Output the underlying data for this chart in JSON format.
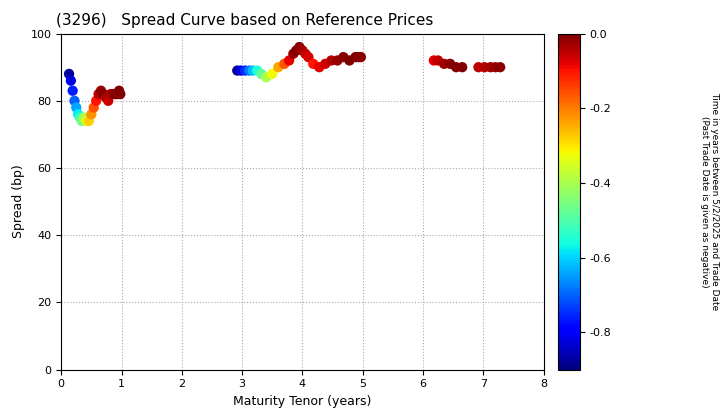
{
  "title": "(3296)   Spread Curve based on Reference Prices",
  "xlabel": "Maturity Tenor (years)",
  "ylabel": "Spread (bp)",
  "colorbar_label": "Time in years between 5/2/2025 and Trade Date\n(Past Trade Date is given as negative)",
  "xlim": [
    0,
    8
  ],
  "ylim": [
    0,
    100
  ],
  "xticks": [
    0,
    1,
    2,
    3,
    4,
    5,
    6,
    7,
    8
  ],
  "yticks": [
    0,
    20,
    40,
    60,
    80,
    100
  ],
  "cbar_ticks": [
    0.0,
    -0.2,
    -0.4,
    -0.6,
    -0.8
  ],
  "vmin": -0.9,
  "vmax": 0.0,
  "cluster1": {
    "tenors": [
      0.13,
      0.16,
      0.19,
      0.22,
      0.25,
      0.28,
      0.31,
      0.34,
      0.38,
      0.42,
      0.46,
      0.5,
      0.54,
      0.58,
      0.62,
      0.66,
      0.7,
      0.74,
      0.78,
      0.82,
      0.86,
      0.9,
      0.93,
      0.96,
      0.98
    ],
    "spreads": [
      88,
      86,
      83,
      80,
      78,
      76,
      75,
      74,
      75,
      74,
      74,
      76,
      78,
      80,
      82,
      83,
      82,
      81,
      80,
      82,
      82,
      82,
      82,
      83,
      82
    ],
    "times": [
      -0.88,
      -0.82,
      -0.76,
      -0.7,
      -0.64,
      -0.58,
      -0.52,
      -0.46,
      -0.4,
      -0.34,
      -0.28,
      -0.22,
      -0.16,
      -0.1,
      -0.05,
      -0.02,
      0.0,
      -0.03,
      -0.06,
      -0.04,
      -0.02,
      -0.01,
      -0.01,
      0.0,
      0.0
    ]
  },
  "cluster2": {
    "tenors": [
      2.92,
      2.98,
      3.05,
      3.12,
      3.18,
      3.25,
      3.32,
      3.4,
      3.5,
      3.6,
      3.7,
      3.78,
      3.85,
      3.9,
      3.95,
      4.0,
      4.05,
      4.1,
      4.18,
      4.28,
      4.38,
      4.48,
      4.58,
      4.68,
      4.78,
      4.88,
      4.93,
      4.97
    ],
    "spreads": [
      89,
      89,
      89,
      89,
      89,
      89,
      88,
      87,
      88,
      90,
      91,
      92,
      94,
      95,
      96,
      95,
      94,
      93,
      91,
      90,
      91,
      92,
      92,
      93,
      92,
      93,
      93,
      93
    ],
    "times": [
      -0.88,
      -0.82,
      -0.75,
      -0.68,
      -0.62,
      -0.55,
      -0.48,
      -0.4,
      -0.32,
      -0.24,
      -0.16,
      -0.08,
      -0.02,
      0.0,
      -0.01,
      -0.03,
      -0.05,
      -0.07,
      -0.1,
      -0.08,
      -0.06,
      -0.04,
      -0.02,
      -0.01,
      0.0,
      0.0,
      -0.01,
      -0.01
    ]
  },
  "cluster3": {
    "tenors": [
      6.18,
      6.25,
      6.35,
      6.45,
      6.55,
      6.65,
      6.92,
      7.02,
      7.12,
      7.2,
      7.28
    ],
    "spreads": [
      92,
      92,
      91,
      91,
      90,
      90,
      90,
      90,
      90,
      90,
      90
    ],
    "times": [
      -0.08,
      -0.05,
      -0.03,
      -0.01,
      0.0,
      0.0,
      -0.05,
      -0.04,
      -0.03,
      -0.02,
      -0.01
    ]
  }
}
